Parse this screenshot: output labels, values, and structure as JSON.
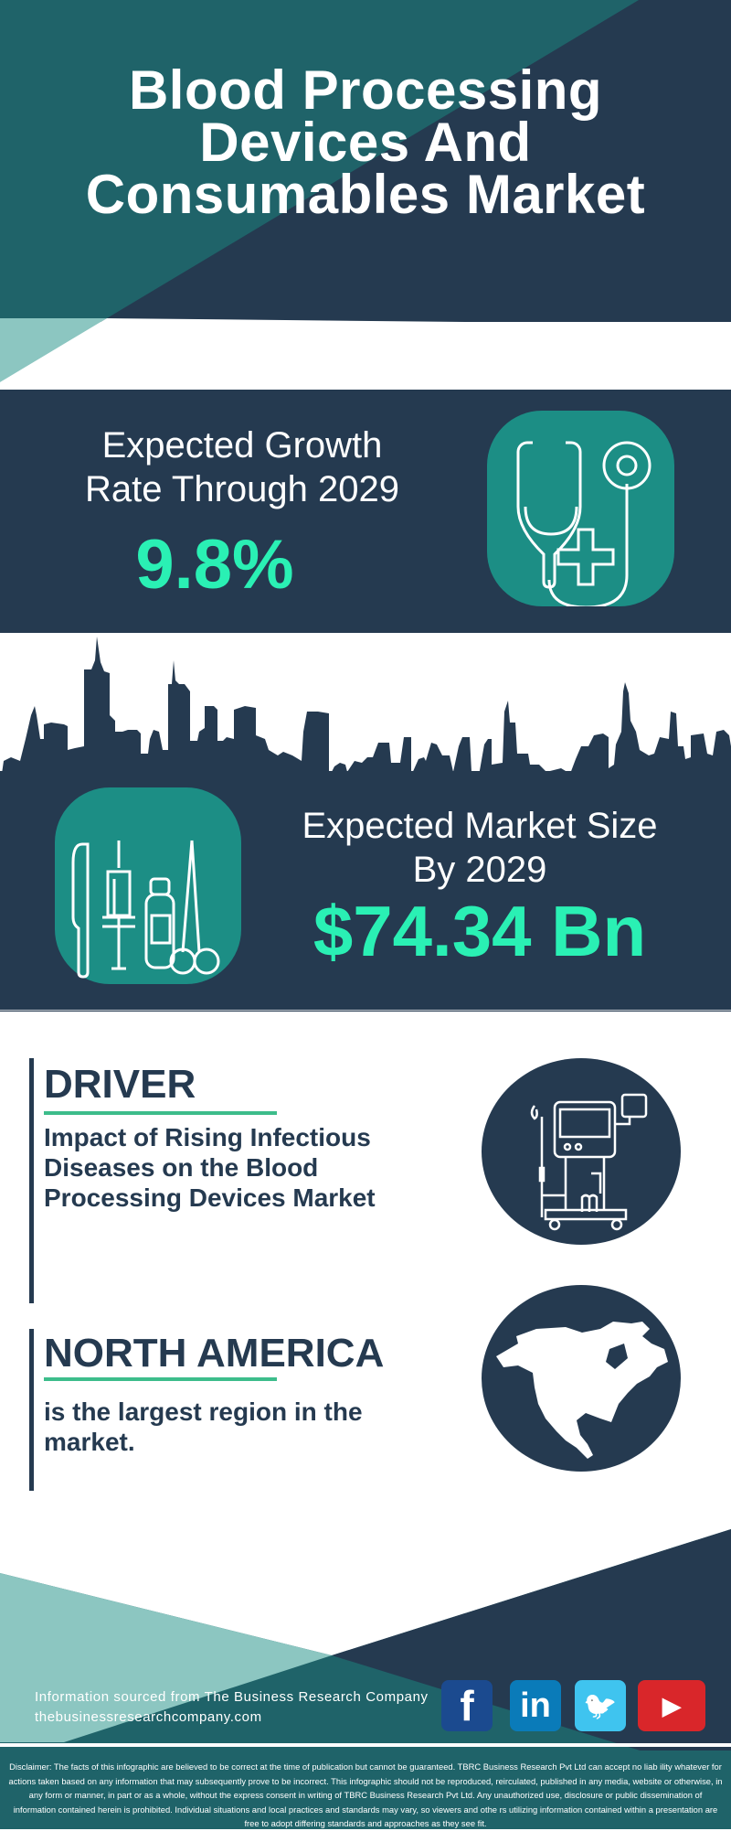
{
  "header": {
    "title_lines": [
      "Blood Processing",
      "Devices And",
      "Consumables Market"
    ]
  },
  "growth": {
    "label_lines": [
      "Expected Growth",
      "Rate Through 2029"
    ],
    "value": "9.8%",
    "icon": "stethoscope-icon"
  },
  "market_size": {
    "label_lines": [
      "Expected Market Size",
      "By 2029"
    ],
    "value": "$74.34 Bn",
    "icon": "medical-tools-icon"
  },
  "driver": {
    "heading": "DRIVER",
    "text_lines": [
      "Impact of Rising Infectious",
      "Diseases on the Blood",
      "Processing Devices Market"
    ],
    "icon": "blood-processing-machine-icon"
  },
  "region": {
    "heading": "NORTH AMERICA",
    "text_lines": [
      "is the largest region in the",
      "market."
    ],
    "icon": "north-america-map-icon"
  },
  "footer": {
    "source": "Information sourced from The Business Research Company",
    "url": "thebusinessresearchcompany.com",
    "social": [
      {
        "name": "facebook",
        "glyph": "f",
        "color": "#1b4a8f"
      },
      {
        "name": "linkedin",
        "glyph": "in",
        "color": "#0a7bb9"
      },
      {
        "name": "twitter",
        "glyph": "🐦",
        "color": "#3fc4ef"
      },
      {
        "name": "youtube",
        "glyph": "▶",
        "color": "#d9262a"
      }
    ],
    "disclaimer": "Disclaimer: The facts of this infographic are believed to be correct at the time of publication but cannot be guaranteed. TBRC Business Research Pvt Ltd can accept no liab ility whatever for actions taken based on any information that may subsequently prove to be incorrect. This infographic should not be reproduced, reirculated, published in any media, website or otherwise, in any form or manner, in part or as a whole, without the express consent in writing of TBRC Business Research Pvt Ltd. Any unauthorized use, disclosure or public dissemination of information contained herein is prohibited. Individual situations and local practices and standards may vary, so viewers and othe rs utilizing information contained within a presentation are free to adopt differing standards and approaches as they see fit."
  },
  "colors": {
    "navy": "#253a50",
    "teal": "#1f6369",
    "light_teal": "#8cc6c1",
    "icon_teal": "#1c8e85",
    "accent": "#2af0b4",
    "underline": "#3dbd8b"
  }
}
